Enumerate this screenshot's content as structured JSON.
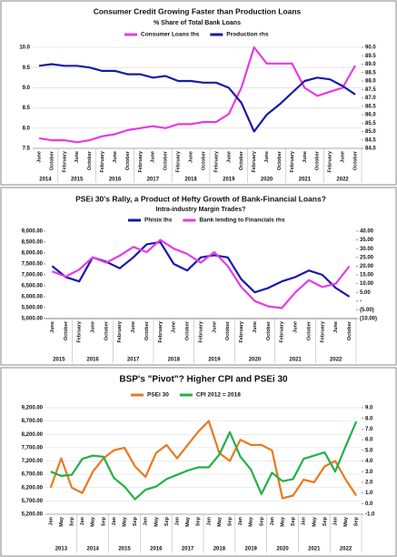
{
  "chart_data": [
    {
      "type": "line",
      "title": "Consumer Credit Growing Faster than Production Loans",
      "subtitle": "% Share of Total Bank Loans",
      "grid": true,
      "years": [
        {
          "label": "2014",
          "months": [
            "June",
            "October"
          ]
        },
        {
          "label": "2015",
          "months": [
            "February",
            "June",
            "October"
          ]
        },
        {
          "label": "2016",
          "months": [
            "February",
            "June",
            "October"
          ]
        },
        {
          "label": "2017",
          "months": [
            "February",
            "June",
            "October"
          ]
        },
        {
          "label": "2018",
          "months": [
            "February",
            "June",
            "October"
          ]
        },
        {
          "label": "2019",
          "months": [
            "February",
            "June",
            "October"
          ]
        },
        {
          "label": "2020",
          "months": [
            "February",
            "June",
            "October"
          ]
        },
        {
          "label": "2021",
          "months": [
            "February",
            "June",
            "October"
          ]
        },
        {
          "label": "2022",
          "months": [
            "February",
            "June",
            "October"
          ]
        }
      ],
      "ylim": [
        7.5,
        10.0
      ],
      "yticks": [
        7.5,
        {
          "value": 8.0,
          "label": "8.0"
        },
        8.5,
        {
          "value": 9.0,
          "label": "9.0"
        },
        9.5,
        {
          "value": 10.0,
          "label": "10.0"
        }
      ],
      "y2lim": [
        84.0,
        90.0
      ],
      "y2ticks": [
        {
          "value": 84.0,
          "label": "84.0"
        },
        84.5,
        {
          "value": 85.0,
          "label": "85.0"
        },
        85.5,
        {
          "value": 86.0,
          "label": "86.0"
        },
        86.5,
        {
          "value": 87.0,
          "label": "87.0"
        },
        87.5,
        {
          "value": 88.0,
          "label": "88.0"
        },
        88.5,
        {
          "value": 89.0,
          "label": "89.0"
        },
        89.5,
        {
          "value": 90.0,
          "label": "90.0"
        }
      ],
      "series": [
        {
          "name": "Consumer Loans lhs",
          "color": "#e63be6",
          "axis": "y",
          "values": [
            7.75,
            7.7,
            7.7,
            7.65,
            7.7,
            7.8,
            7.85,
            7.95,
            8.0,
            8.05,
            8.0,
            8.1,
            8.1,
            8.15,
            8.15,
            8.35,
            9.0,
            10.0,
            9.6,
            9.6,
            9.6,
            9.0,
            8.8,
            8.9,
            9.0,
            9.55
          ]
        },
        {
          "name": "Production rhs",
          "color": "#1a1aa8",
          "axis": "y2",
          "values": [
            88.9,
            89.0,
            88.9,
            88.9,
            88.8,
            88.6,
            88.6,
            88.4,
            88.4,
            88.2,
            88.3,
            88.0,
            88.0,
            87.9,
            87.9,
            87.6,
            86.7,
            85.0,
            86.0,
            86.6,
            87.3,
            88.0,
            88.2,
            88.1,
            87.7,
            87.2
          ]
        }
      ]
    },
    {
      "type": "line",
      "title": "PSEi 30's Rally, a Product of Hefty Growth of Bank-Financial Loans?",
      "subtitle": "Intra-industry Margin Trades?",
      "grid": false,
      "years": [
        {
          "label": "2015",
          "months": [
            "June",
            "October"
          ]
        },
        {
          "label": "2016",
          "months": [
            "February",
            "June",
            "October"
          ]
        },
        {
          "label": "2017",
          "months": [
            "February",
            "June",
            "October"
          ]
        },
        {
          "label": "2018",
          "months": [
            "February",
            "June",
            "October"
          ]
        },
        {
          "label": "2019",
          "months": [
            "February",
            "June",
            "October"
          ]
        },
        {
          "label": "2020",
          "months": [
            "February",
            "June",
            "October"
          ]
        },
        {
          "label": "2021",
          "months": [
            "February",
            "June",
            "October"
          ]
        },
        {
          "label": "2022",
          "months": [
            "February",
            "June",
            "October"
          ]
        }
      ],
      "ylim": [
        5000,
        9000
      ],
      "yticks": [
        {
          "value": 5000,
          "label": "5,000.00"
        },
        {
          "value": 5500,
          "label": "5,500.00"
        },
        {
          "value": 6000,
          "label": "6,000.00"
        },
        {
          "value": 6500,
          "label": "6,500.00"
        },
        {
          "value": 7000,
          "label": "7,000.00"
        },
        {
          "value": 7500,
          "label": "7,500.00"
        },
        {
          "value": 8000,
          "label": "8,000.00"
        },
        {
          "value": 8500,
          "label": "8,500.00"
        },
        {
          "value": 9000,
          "label": "9,000.00"
        }
      ],
      "y2lim": [
        -10,
        40
      ],
      "y2ticks": [
        {
          "value": -10,
          "label": "(10.00)"
        },
        {
          "value": -5,
          "label": "(5.00)"
        },
        {
          "value": 0,
          "label": "-"
        },
        {
          "value": 5,
          "label": "5.00"
        },
        {
          "value": 10,
          "label": "10.00"
        },
        {
          "value": 15,
          "label": "15.00"
        },
        {
          "value": 20,
          "label": "20.00"
        },
        {
          "value": 25,
          "label": "25.00"
        },
        {
          "value": 30,
          "label": "30.00"
        },
        {
          "value": 35,
          "label": "35.00"
        },
        {
          "value": 40,
          "label": "40.00"
        }
      ],
      "series": [
        {
          "name": "Phisix lhs",
          "color": "#1a1aa8",
          "axis": "y",
          "values": [
            7400,
            6900,
            6700,
            7800,
            7600,
            7300,
            7800,
            8400,
            8500,
            7500,
            7200,
            7800,
            7900,
            7800,
            6800,
            6200,
            6400,
            6700,
            6900,
            7200,
            7000,
            6400,
            6000
          ]
        },
        {
          "name": "Bank lending to Financials rhs",
          "color": "#e63be6",
          "axis": "y2",
          "values": [
            17,
            14,
            18,
            25,
            22,
            26,
            31,
            28,
            35,
            30,
            27,
            22,
            28,
            20,
            8,
            0,
            -3,
            -4,
            5,
            12,
            8,
            10,
            20
          ]
        }
      ]
    },
    {
      "type": "line",
      "title": "BSP's \"Pivot\"? Higher CPI and PSEi 30",
      "grid": true,
      "years": [
        {
          "label": "2013",
          "months": [
            "Jan",
            "May",
            "Sep"
          ]
        },
        {
          "label": "2014",
          "months": [
            "Jan",
            "May",
            "Sep"
          ]
        },
        {
          "label": "2015",
          "months": [
            "Jan",
            "May",
            "Sep"
          ]
        },
        {
          "label": "2016",
          "months": [
            "Jan",
            "May",
            "Sep"
          ]
        },
        {
          "label": "2017",
          "months": [
            "Jan",
            "May",
            "Sep"
          ]
        },
        {
          "label": "2018",
          "months": [
            "Jan",
            "May",
            "Sep"
          ]
        },
        {
          "label": "2019",
          "months": [
            "Jan",
            "May",
            "Sep"
          ]
        },
        {
          "label": "2020",
          "months": [
            "Jan",
            "May",
            "Sep"
          ]
        },
        {
          "label": "2021",
          "months": [
            "Jan",
            "May",
            "Sep"
          ]
        },
        {
          "label": "2022",
          "months": [
            "Jan",
            "May",
            "Sep"
          ]
        }
      ],
      "ylim": [
        5200,
        9200
      ],
      "yticks": [
        {
          "value": 5200,
          "label": "5,200.00"
        },
        {
          "value": 5700,
          "label": "5,700.00"
        },
        {
          "value": 6200,
          "label": "6,200.00"
        },
        {
          "value": 6700,
          "label": "6,700.00"
        },
        {
          "value": 7200,
          "label": "7,200.00"
        },
        {
          "value": 7700,
          "label": "7,700.00"
        },
        {
          "value": 8200,
          "label": "8,200.00"
        },
        {
          "value": 8700,
          "label": "8,700.00"
        },
        {
          "value": 9200,
          "label": "9,200.00"
        }
      ],
      "y2lim": [
        -1.0,
        9.0
      ],
      "y2ticks": [
        {
          "value": -1.0,
          "label": "-1.0"
        },
        {
          "value": 0.0,
          "label": "0.0"
        },
        {
          "value": 1.0,
          "label": "1.0"
        },
        {
          "value": 2.0,
          "label": "2.0"
        },
        {
          "value": 3.0,
          "label": "3.0"
        },
        {
          "value": 4.0,
          "label": "4.0"
        },
        {
          "value": 5.0,
          "label": "5.0"
        },
        {
          "value": 6.0,
          "label": "6.0"
        },
        {
          "value": 7.0,
          "label": "7.0"
        },
        {
          "value": 8.0,
          "label": "8.0"
        },
        {
          "value": 9.0,
          "label": "9.0"
        }
      ],
      "series": [
        {
          "name": "PSEi 30",
          "color": "#e8791e",
          "axis": "y",
          "values": [
            6200,
            7300,
            6200,
            6000,
            6800,
            7300,
            7600,
            7700,
            7000,
            6600,
            7500,
            7800,
            7300,
            7800,
            8300,
            8700,
            7500,
            7200,
            8000,
            7800,
            7800,
            7600,
            5800,
            5900,
            6500,
            6400,
            7000,
            7200,
            6500,
            5900
          ]
        },
        {
          "name": "CPI 2012 = 2018",
          "color": "#22b04a",
          "axis": "y2",
          "values": [
            3.0,
            2.6,
            2.7,
            4.2,
            4.5,
            4.4,
            2.4,
            1.6,
            0.4,
            1.3,
            1.6,
            2.3,
            2.7,
            3.1,
            3.4,
            3.4,
            4.6,
            6.7,
            4.4,
            3.2,
            0.9,
            2.9,
            2.1,
            2.3,
            4.2,
            4.5,
            4.8,
            3.0,
            5.4,
            7.7
          ]
        }
      ]
    }
  ]
}
